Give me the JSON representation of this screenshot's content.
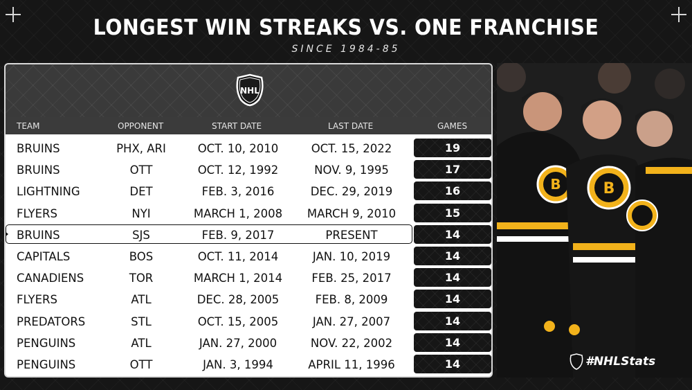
{
  "header": {
    "title": "LONGEST WIN STREAKS VS. ONE FRANCHISE",
    "subtitle": "SINCE 1984-85"
  },
  "table": {
    "columns": [
      "TEAM",
      "OPPONENT",
      "START DATE",
      "LAST DATE",
      "GAMES"
    ],
    "highlight_row_index": 4
  },
  "chart_data": {
    "type": "table",
    "title": "LONGEST WIN STREAKS VS. ONE FRANCHISE",
    "subtitle": "SINCE 1984-85",
    "columns": [
      "TEAM",
      "OPPONENT",
      "START DATE",
      "LAST DATE",
      "GAMES"
    ],
    "rows": [
      {
        "team": "BRUINS",
        "opponent": "PHX, ARI",
        "start": "OCT. 10, 2010",
        "last": "OCT. 15, 2022",
        "games": "19"
      },
      {
        "team": "BRUINS",
        "opponent": "OTT",
        "start": "OCT. 12, 1992",
        "last": "NOV. 9, 1995",
        "games": "17"
      },
      {
        "team": "LIGHTNING",
        "opponent": "DET",
        "start": "FEB. 3, 2016",
        "last": "DEC. 29, 2019",
        "games": "16"
      },
      {
        "team": "FLYERS",
        "opponent": "NYI",
        "start": "MARCH 1, 2008",
        "last": "MARCH 9, 2010",
        "games": "15"
      },
      {
        "team": "BRUINS",
        "opponent": "SJS",
        "start": "FEB. 9, 2017",
        "last": "PRESENT",
        "games": "14"
      },
      {
        "team": "CAPITALS",
        "opponent": "BOS",
        "start": "OCT. 11, 2014",
        "last": "JAN. 10, 2019",
        "games": "14"
      },
      {
        "team": "CANADIENS",
        "opponent": "TOR",
        "start": "MARCH 1, 2014",
        "last": "FEB. 25, 2017",
        "games": "14"
      },
      {
        "team": "FLYERS",
        "opponent": "ATL",
        "start": "DEC. 28, 2005",
        "last": "FEB. 8, 2009",
        "games": "14"
      },
      {
        "team": "PREDATORS",
        "opponent": "STL",
        "start": "OCT. 15, 2005",
        "last": "JAN. 27, 2007",
        "games": "14"
      },
      {
        "team": "PENGUINS",
        "opponent": "ATL",
        "start": "JAN. 27, 2000",
        "last": "NOV. 22, 2002",
        "games": "14"
      },
      {
        "team": "PENGUINS",
        "opponent": "OTT",
        "start": "JAN. 3, 1994",
        "last": "APRIL 11, 1996",
        "games": "14"
      }
    ]
  },
  "logos": {
    "nhl_logo_text": "NHL",
    "hashtag": "#NHLStats"
  },
  "photo": {
    "jersey_logo_letter": "B"
  },
  "colors": {
    "background": "#161616",
    "bruins_gold": "#f2b21b",
    "games_box": "#161616"
  },
  "icons": [
    "crosshair-icon",
    "nhl-shield-icon"
  ]
}
